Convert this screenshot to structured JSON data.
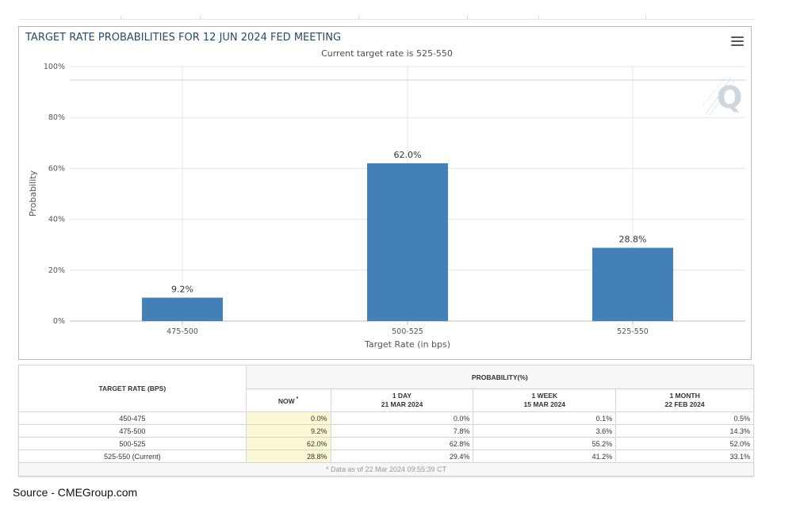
{
  "chart_data": {
    "type": "bar",
    "title": "TARGET RATE PROBABILITIES FOR 12 JUN 2024 FED MEETING",
    "subtitle": "Current target rate is 525-550",
    "xlabel": "Target Rate (in bps)",
    "ylabel": "Probability",
    "categories": [
      "475-500",
      "500-525",
      "525-550"
    ],
    "values": [
      9.2,
      62.0,
      28.8
    ],
    "data_labels": [
      "9.2%",
      "62.0%",
      "28.8%"
    ],
    "ylim": [
      0,
      100
    ],
    "y_ticks": [
      "0%",
      "20%",
      "40%",
      "60%",
      "80%",
      "100%"
    ],
    "y_tick_values": [
      0,
      20,
      40,
      60,
      80,
      100
    ],
    "grid": true,
    "bar_color": "#4380b7"
  },
  "table": {
    "row_header": "TARGET RATE (BPS)",
    "group_header": "PROBABILITY(%)",
    "columns": [
      {
        "line1": "NOW",
        "line2": ""
      },
      {
        "line1": "1 DAY",
        "line2": "21 MAR 2024"
      },
      {
        "line1": "1 WEEK",
        "line2": "15 MAR 2024"
      },
      {
        "line1": "1 MONTH",
        "line2": "22 FEB 2024"
      }
    ],
    "now_marker": "*",
    "rows": [
      {
        "rate": "450-475",
        "values": [
          "0.0%",
          "0.0%",
          "0.1%",
          "0.5%"
        ]
      },
      {
        "rate": "475-500",
        "values": [
          "9.2%",
          "7.8%",
          "3.6%",
          "14.3%"
        ]
      },
      {
        "rate": "500-525",
        "values": [
          "62.0%",
          "62.8%",
          "55.2%",
          "52.0%"
        ]
      },
      {
        "rate": "525-550 (Current)",
        "values": [
          "28.8%",
          "29.4%",
          "41.2%",
          "33.1%"
        ]
      }
    ],
    "footnote": "* Data as of 22 Mar 2024 09:55:39 CT"
  },
  "source": "Source - CMEGroup.com",
  "icons": {
    "menu": "hamburger-menu-icon",
    "watermark": "q-logo-watermark"
  }
}
